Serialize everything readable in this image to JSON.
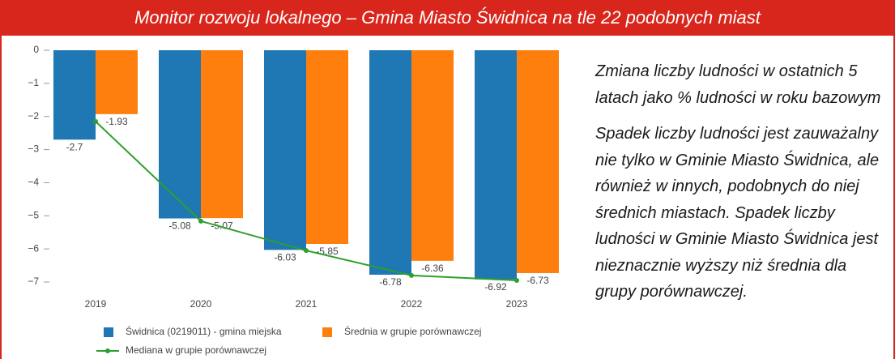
{
  "title": "Monitor rozwoju lokalnego – Gmina Miasto Świdnica na tle 22 podobnych miast",
  "description": [
    "Zmiana liczby ludności w ostatnich 5 latach jako % ludności w roku bazowym",
    "Spadek liczby ludności jest zauważalny nie tylko w Gminie Miasto Świdnica, ale również w innych, podobnych do niej średnich miastach. Spadek liczby ludności w Gminie Miasto Świdnica jest nieznacznie wyższy niż średnia dla grupy porównawczej."
  ],
  "chart_data": {
    "type": "bar",
    "categories": [
      "2019",
      "2020",
      "2021",
      "2022",
      "2023"
    ],
    "series": [
      {
        "name": "Świdnica (0219011) - gmina miejska",
        "color": "#1f77b4",
        "values": [
          -2.7,
          -5.08,
          -6.03,
          -6.78,
          -6.92
        ]
      },
      {
        "name": "Średnia w grupie porównawczej",
        "color": "#ff7f0e",
        "values": [
          -1.93,
          -5.07,
          -5.85,
          -6.36,
          -6.73
        ]
      },
      {
        "name": "Mediana w grupie porównawczej",
        "color": "#2ca02c",
        "type": "line",
        "values": [
          -2.15,
          -5.16,
          -6.05,
          -6.8,
          -6.95
        ]
      }
    ],
    "ylim": [
      0,
      -7
    ],
    "yticks": [
      0,
      {
        "value": -1,
        "label": "−1"
      },
      {
        "value": -2,
        "label": "−2"
      },
      {
        "value": -3,
        "label": "−3"
      },
      {
        "value": -4,
        "label": "−4"
      },
      {
        "value": -5,
        "label": "−5"
      },
      {
        "value": -6,
        "label": "−6"
      },
      {
        "value": -7,
        "label": "−7"
      }
    ],
    "grid": false
  }
}
